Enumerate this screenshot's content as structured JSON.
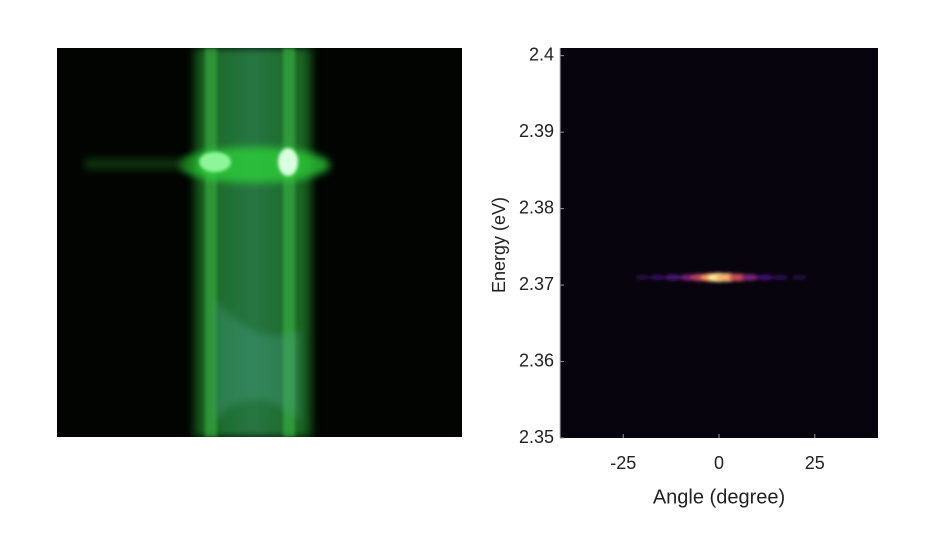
{
  "chart_data": {
    "type": "heatmap",
    "x_label": "Angle (degree)",
    "y_label": "Energy (eV)",
    "xlim": [
      -41.5,
      41.5
    ],
    "ylim": [
      2.35,
      2.401
    ],
    "xticks": [
      -25,
      0,
      25
    ],
    "yticks": [
      2.35,
      2.36,
      2.37,
      2.38,
      2.39,
      2.4
    ],
    "background": "#07040e",
    "x": [
      -20,
      -16,
      -12,
      -8,
      -5,
      -2,
      0,
      2,
      5,
      8,
      12,
      16,
      21
    ],
    "values": [
      2.371,
      2.371,
      2.371,
      2.371,
      2.371,
      2.371,
      2.371,
      2.371,
      2.371,
      2.371,
      2.371,
      2.371,
      2.371
    ],
    "intensity": [
      0.12,
      0.18,
      0.28,
      0.4,
      0.6,
      0.85,
      1,
      0.9,
      0.65,
      0.42,
      0.25,
      0.15,
      0.1
    ]
  }
}
